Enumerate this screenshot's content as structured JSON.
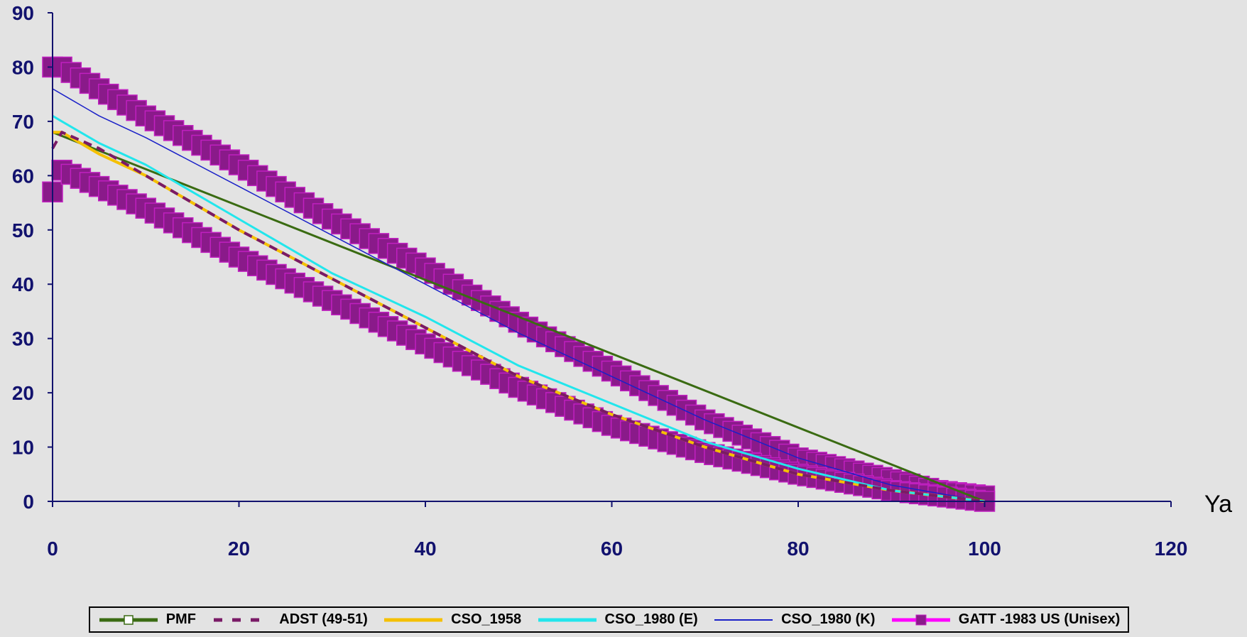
{
  "chart_data": {
    "type": "line",
    "xlabel": "Ya",
    "ylabel": "",
    "xlim": [
      0,
      120
    ],
    "ylim": [
      0,
      90
    ],
    "x_ticks": [
      0,
      20,
      40,
      60,
      80,
      100,
      120
    ],
    "y_ticks": [
      0,
      10,
      20,
      30,
      40,
      50,
      60,
      70,
      80,
      90
    ],
    "grid": false,
    "legend_position": "bottom",
    "series": [
      {
        "name": "PMF",
        "style": "line-open-square-marker",
        "color": "#3a6b12",
        "x": [
          0,
          100
        ],
        "y": [
          68,
          0
        ]
      },
      {
        "name": "ADST (49-51)",
        "style": "dashed",
        "color": "#7a1a66",
        "x": [
          0,
          1,
          5,
          10,
          20,
          30,
          40,
          50,
          60,
          70,
          80,
          90,
          100
        ],
        "y": [
          65,
          68,
          65,
          60,
          50,
          41,
          32,
          23,
          16,
          10,
          5,
          2,
          0
        ]
      },
      {
        "name": "CSO_1958",
        "style": "solid",
        "color": "#f5c000",
        "x": [
          0,
          1,
          5,
          10,
          20,
          30,
          40,
          50,
          60,
          70,
          80,
          90,
          100
        ],
        "y": [
          68,
          68,
          64,
          60,
          50,
          41,
          32,
          23,
          16,
          10,
          5,
          2,
          0
        ]
      },
      {
        "name": "CSO_1980 (E)",
        "style": "solid",
        "color": "#22e6ec",
        "x": [
          0,
          1,
          5,
          10,
          20,
          30,
          40,
          50,
          60,
          70,
          80,
          90,
          100
        ],
        "y": [
          71,
          70,
          66,
          62,
          52,
          42,
          34,
          25,
          18,
          11,
          6,
          2,
          0
        ]
      },
      {
        "name": "CSO_1980 (K)",
        "style": "solid-thin",
        "color": "#1a20c8",
        "x": [
          0,
          2,
          5,
          10,
          20,
          30,
          40,
          50,
          60,
          70,
          80,
          90,
          100
        ],
        "y": [
          76,
          74,
          71,
          67,
          58,
          49,
          40,
          31,
          23,
          15,
          8,
          3,
          0
        ]
      },
      {
        "name": "GATT -1983 US (Unisex)",
        "style": "square-markers",
        "color": "#8a1a8a",
        "x": [
          0,
          1,
          5,
          10,
          20,
          30,
          40,
          50,
          60,
          70,
          80,
          90,
          95,
          100
        ],
        "y": [
          80,
          80,
          76,
          71,
          62,
          52,
          43,
          33,
          24,
          15,
          8,
          4,
          2,
          1
        ]
      },
      {
        "name": "GATT -1983 US (Unisex)",
        "style": "square-markers",
        "color": "#8a1a8a",
        "legend": false,
        "x": [
          0,
          1,
          5,
          10,
          20,
          30,
          40,
          50,
          60,
          70,
          80,
          90,
          95,
          100
        ],
        "y": [
          57,
          61,
          58,
          54,
          45,
          37,
          29,
          21,
          14,
          9,
          5,
          2,
          1,
          0
        ]
      }
    ]
  }
}
